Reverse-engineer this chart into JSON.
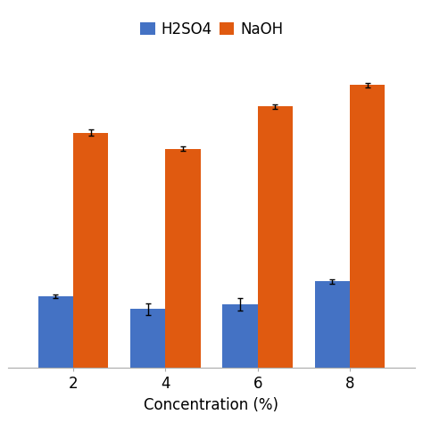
{
  "categories": [
    "2",
    "4",
    "6",
    "8"
  ],
  "h2so4_values": [
    0.22,
    0.18,
    0.195,
    0.265
  ],
  "naoh_values": [
    0.72,
    0.67,
    0.8,
    0.865
  ],
  "h2so4_errors": [
    0.005,
    0.018,
    0.018,
    0.007
  ],
  "naoh_errors": [
    0.01,
    0.007,
    0.007,
    0.007
  ],
  "h2so4_color": "#4472C4",
  "naoh_color": "#E05A10",
  "xlabel": "Concentration (%)",
  "legend_labels": [
    "H2SO4",
    "NaOH"
  ],
  "bar_width": 0.38,
  "background_color": "#ffffff",
  "ylim": [
    0,
    0.97
  ],
  "legend_fontsize": 12,
  "xlabel_fontsize": 12,
  "tick_fontsize": 12
}
